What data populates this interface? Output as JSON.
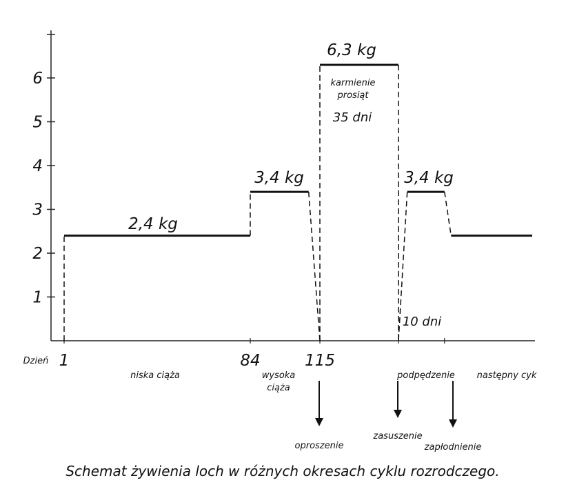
{
  "chart_data": {
    "type": "line",
    "title": "",
    "xlabel": "Dzień",
    "ylabel": "",
    "ylim": [
      0,
      7
    ],
    "y_ticks": [
      "1",
      "2",
      "3",
      "4",
      "5",
      "6"
    ],
    "x_ticks": [
      "1",
      "84",
      "115"
    ],
    "series": [
      {
        "points": [
          {
            "day": 1,
            "kg": 2.4
          },
          {
            "day": 84,
            "kg": 2.4
          },
          {
            "day": 84,
            "kg": 3.4
          },
          {
            "day": 110,
            "kg": 3.4
          },
          {
            "day": 115,
            "kg": 0
          },
          {
            "day": 115,
            "kg": 6.3
          },
          {
            "day": 150,
            "kg": 6.3
          },
          {
            "day": 150,
            "kg": 0
          },
          {
            "day": 154,
            "kg": 3.4
          },
          {
            "day": 171,
            "kg": 3.4
          },
          {
            "day": 174,
            "kg": 2.4
          },
          {
            "day": 211,
            "kg": 2.4
          }
        ]
      }
    ],
    "level_labels": [
      "2,4 kg",
      "3,4 kg",
      "6,3 kg",
      "3,4 kg"
    ],
    "phase_labels": [
      "niska ciąża",
      "wysoka ciąża",
      "podpędzenie",
      "następny cyk"
    ],
    "annotations": [
      "karmienie prosiąt",
      "35 dni",
      "10 dni"
    ],
    "event_labels": [
      "oproszenie",
      "zasuszenie",
      "zapłodnienie"
    ],
    "caption": "Schemat żywienia loch w różnych okresach cyklu rozrodczego."
  }
}
